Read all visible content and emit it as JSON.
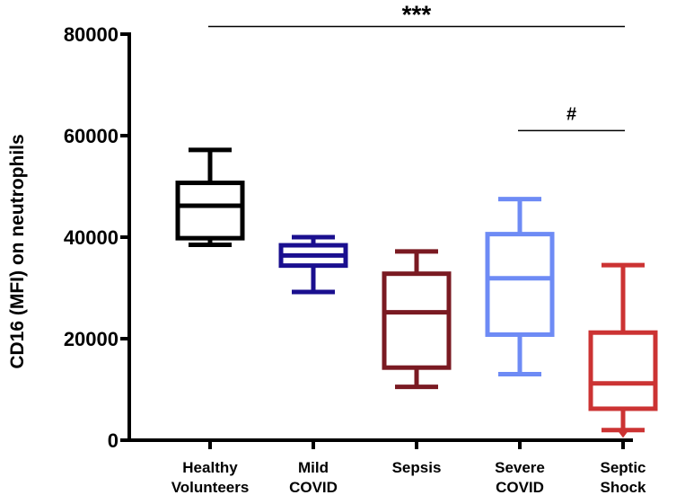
{
  "chart_data": {
    "type": "box",
    "ylabel": "CD16 (MFI) on neutrophils",
    "ylim": [
      0,
      80000
    ],
    "yticks": [
      0,
      20000,
      40000,
      60000,
      80000
    ],
    "ytick_labels": [
      "0",
      "20000",
      "40000",
      "60000",
      "80000"
    ],
    "groups": [
      {
        "name_lines": [
          "Healthy",
          "Volunteers"
        ],
        "color": "#000000",
        "min": 38500,
        "q1": 39800,
        "median": 46200,
        "q3": 50700,
        "max": 57200
      },
      {
        "name_lines": [
          "Mild",
          "COVID"
        ],
        "color": "#1a0f8f",
        "min": 29200,
        "q1": 34400,
        "median": 36400,
        "q3": 38400,
        "max": 40000
      },
      {
        "name_lines": [
          "Sepsis"
        ],
        "color": "#7a1a22",
        "min": 10500,
        "q1": 14300,
        "median": 25200,
        "q3": 32800,
        "max": 37200
      },
      {
        "name_lines": [
          "Severe",
          "COVID"
        ],
        "color": "#6e8bf5",
        "min": 13000,
        "q1": 20800,
        "median": 31900,
        "q3": 40600,
        "max": 47500
      },
      {
        "name_lines": [
          "Septic",
          "Shock"
        ],
        "color": "#cc3333",
        "min": 2000,
        "q1": 6200,
        "median": 11200,
        "q3": 21200,
        "max": 34500,
        "outlier": 1000
      }
    ],
    "annotations": [
      {
        "label": "***",
        "from_group": 0,
        "to_group": 4,
        "y": 81500
      },
      {
        "label": "#",
        "from_group": 3,
        "to_group": 4,
        "y": 61000
      }
    ]
  }
}
